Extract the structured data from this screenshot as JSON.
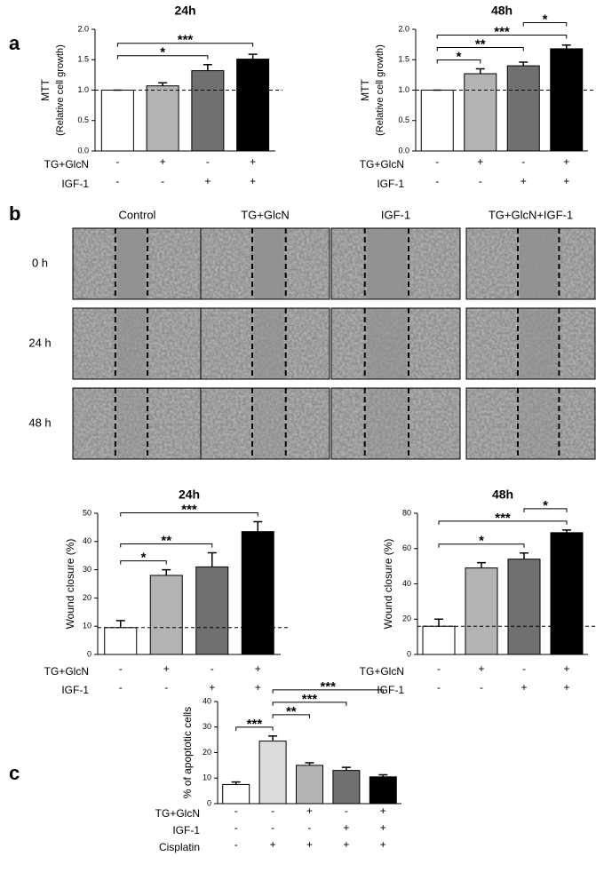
{
  "panel_labels": [
    "a",
    "b",
    "c"
  ],
  "wound_images": {
    "columns": [
      "Control",
      "TG+GlcN",
      "IGF-1",
      "TG+GlcN+IGF-1"
    ],
    "rows": [
      "0 h",
      "24 h",
      "48 h"
    ]
  },
  "chart_data": [
    {
      "type": "bar",
      "title": "24h",
      "ylabel": [
        "MTT",
        "(Relative cell growth)"
      ],
      "categories": [
        null,
        null,
        null,
        null
      ],
      "values": [
        1.0,
        1.07,
        1.32,
        1.51
      ],
      "errors": [
        0,
        0.05,
        0.1,
        0.08
      ],
      "colors": [
        "#ffffff",
        "#b3b3b3",
        "#707070",
        "#000000"
      ],
      "reference_line": 1.0,
      "ylim": [
        0,
        2
      ],
      "yticks": [
        {
          "value": 0,
          "label": "0.0"
        },
        {
          "value": 0.5,
          "label": "0.5"
        },
        {
          "value": 1,
          "label": "1.0"
        },
        {
          "value": 1.5,
          "label": "1.5"
        },
        {
          "value": 2,
          "label": "2.0"
        }
      ],
      "brackets": [
        {
          "bars": [
            0,
            2
          ],
          "label": "*"
        },
        {
          "bars": [
            0,
            3
          ],
          "label": "***"
        }
      ],
      "conditions": [
        {
          "name": "TG+GlcN",
          "marks": [
            "-",
            "+",
            "-",
            "+"
          ]
        },
        {
          "name": "IGF-1",
          "marks": [
            "-",
            "-",
            "+",
            "+"
          ]
        }
      ]
    },
    {
      "type": "bar",
      "title": "48h",
      "ylabel": [
        "MTT",
        "(Relative cell growth)"
      ],
      "categories": [
        null,
        null,
        null,
        null
      ],
      "values": [
        1.0,
        1.27,
        1.4,
        1.68
      ],
      "errors": [
        0,
        0.08,
        0.06,
        0.06
      ],
      "colors": [
        "#ffffff",
        "#b3b3b3",
        "#707070",
        "#000000"
      ],
      "reference_line": 1.0,
      "ylim": [
        0,
        2
      ],
      "yticks": [
        {
          "value": 0,
          "label": "0.0"
        },
        {
          "value": 0.5,
          "label": "0.5"
        },
        {
          "value": 1,
          "label": "1.0"
        },
        {
          "value": 1.5,
          "label": "1.5"
        },
        {
          "value": 2,
          "label": "2.0"
        }
      ],
      "brackets": [
        {
          "bars": [
            0,
            1
          ],
          "label": "*"
        },
        {
          "bars": [
            0,
            2
          ],
          "label": "**"
        },
        {
          "bars": [
            0,
            3
          ],
          "label": "***"
        },
        {
          "bars": [
            2,
            3
          ],
          "label": "*"
        }
      ],
      "conditions": [
        {
          "name": "TG+GlcN",
          "marks": [
            "-",
            "+",
            "-",
            "+"
          ]
        },
        {
          "name": "IGF-1",
          "marks": [
            "-",
            "-",
            "+",
            "+"
          ]
        }
      ]
    },
    {
      "type": "bar",
      "title": "24h",
      "ylabel": [
        "Wound closure (%)"
      ],
      "categories": [
        null,
        null,
        null,
        null
      ],
      "values": [
        9.5,
        28,
        31,
        43.5
      ],
      "errors": [
        2.5,
        2,
        5,
        3.5
      ],
      "colors": [
        "#ffffff",
        "#b3b3b3",
        "#707070",
        "#000000"
      ],
      "reference_line": 9.5,
      "ylim": [
        0,
        50
      ],
      "yticks": [
        0,
        10,
        20,
        30,
        40,
        50
      ],
      "brackets": [
        {
          "bars": [
            0,
            1
          ],
          "label": "*"
        },
        {
          "bars": [
            0,
            2
          ],
          "label": "**"
        },
        {
          "bars": [
            0,
            3
          ],
          "label": "***"
        }
      ],
      "conditions": [
        {
          "name": "TG+GlcN",
          "marks": [
            "-",
            "+",
            "-",
            "+"
          ]
        },
        {
          "name": "IGF-1",
          "marks": [
            "-",
            "-",
            "+",
            "+"
          ]
        }
      ]
    },
    {
      "type": "bar",
      "title": "48h",
      "ylabel": [
        "Wound closure (%)"
      ],
      "categories": [
        null,
        null,
        null,
        null
      ],
      "values": [
        16,
        49,
        54,
        69
      ],
      "errors": [
        4,
        3,
        3.5,
        1.5
      ],
      "colors": [
        "#ffffff",
        "#b3b3b3",
        "#707070",
        "#000000"
      ],
      "reference_line": 16,
      "ylim": [
        0,
        80
      ],
      "yticks": [
        0,
        20,
        40,
        60,
        80
      ],
      "brackets": [
        {
          "bars": [
            0,
            2
          ],
          "label": "*"
        },
        {
          "bars": [
            0,
            3
          ],
          "label": "***"
        },
        {
          "bars": [
            2,
            3
          ],
          "label": "*"
        }
      ],
      "conditions": [
        {
          "name": "TG+GlcN",
          "marks": [
            "-",
            "+",
            "-",
            "+"
          ]
        },
        {
          "name": "IGF-1",
          "marks": [
            "-",
            "-",
            "+",
            "+"
          ]
        }
      ]
    },
    {
      "type": "bar",
      "ylabel": [
        "% of apoptotic cells"
      ],
      "categories": [
        null,
        null,
        null,
        null,
        null
      ],
      "values": [
        7.5,
        24.5,
        15,
        13,
        10.5
      ],
      "errors": [
        1,
        2,
        1,
        1.2,
        0.8
      ],
      "colors": [
        "#ffffff",
        "#dcdcdc",
        "#b3b3b3",
        "#707070",
        "#000000"
      ],
      "ylim": [
        0,
        40
      ],
      "yticks": [
        0,
        10,
        20,
        30,
        40
      ],
      "brackets": [
        {
          "bars": [
            0,
            1
          ],
          "label": "***"
        },
        {
          "bars": [
            1,
            2
          ],
          "label": "**"
        },
        {
          "bars": [
            1,
            3
          ],
          "label": "***"
        },
        {
          "bars": [
            1,
            4
          ],
          "label": "***"
        }
      ],
      "conditions": [
        {
          "name": "TG+GlcN",
          "marks": [
            "-",
            "-",
            "+",
            "-",
            "+"
          ]
        },
        {
          "name": "IGF-1",
          "marks": [
            "-",
            "-",
            "-",
            "+",
            "+"
          ]
        },
        {
          "name": "Cisplatin",
          "marks": [
            "-",
            "+",
            "+",
            "+",
            "+"
          ]
        }
      ]
    }
  ]
}
